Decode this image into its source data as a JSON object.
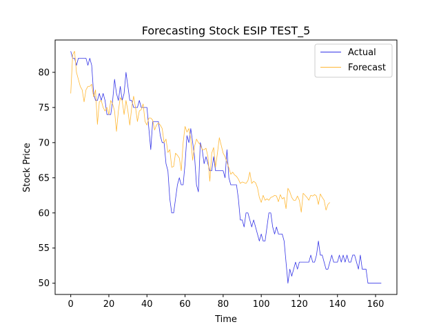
{
  "chart_data": {
    "type": "line",
    "title": "Forecasting Stock ESIP TEST_5",
    "xlabel": "Time",
    "ylabel": "Stock Price",
    "xlim": [
      -8.2,
      171.2
    ],
    "ylim": [
      48.4,
      84.6
    ],
    "xticks": [
      0,
      20,
      40,
      60,
      80,
      100,
      120,
      140,
      160
    ],
    "yticks": [
      50,
      55,
      60,
      65,
      70,
      75,
      80
    ],
    "grid": false,
    "legend_position": "top-right",
    "series": [
      {
        "name": "Actual",
        "color": "#3333e6",
        "values": [
          83,
          82,
          82,
          81,
          82,
          82,
          82,
          82,
          82,
          81,
          82,
          81,
          77,
          76,
          76,
          77,
          76,
          77,
          76,
          74,
          74,
          74,
          76,
          79,
          77,
          76,
          78,
          76,
          77,
          80,
          78,
          76,
          76,
          75,
          75,
          75,
          76,
          75,
          75,
          75,
          75,
          72,
          69,
          73,
          73,
          73,
          73,
          71,
          70,
          70,
          67,
          66,
          62,
          60,
          60,
          62,
          64,
          65,
          64,
          64,
          67,
          71,
          70,
          72,
          70,
          68,
          64,
          63,
          70,
          69,
          67,
          68,
          67,
          66,
          66,
          68,
          66,
          66,
          66,
          66,
          66,
          65,
          69,
          65,
          64,
          64,
          64,
          64,
          62,
          59,
          59,
          58,
          60,
          60,
          59,
          58,
          59,
          58,
          57,
          56,
          57,
          56,
          56,
          58,
          60,
          60,
          58,
          57,
          58,
          57,
          57,
          57,
          56,
          53,
          50,
          52,
          51,
          52,
          53,
          52,
          53,
          53,
          53,
          53,
          53,
          53,
          54,
          53,
          53,
          54,
          56,
          54,
          54,
          53,
          52,
          52,
          53,
          54,
          53,
          53,
          53,
          54,
          53,
          54,
          53,
          54,
          53,
          53,
          54,
          54,
          53,
          52,
          54,
          52,
          52,
          52,
          50,
          50,
          50,
          50,
          50,
          50,
          50,
          50
        ]
      },
      {
        "name": "Forecast",
        "color": "#ffb733",
        "values": [
          77,
          82.5,
          83,
          80,
          79,
          78,
          77.5,
          75.8,
          77.5,
          78,
          78,
          78.3,
          76.5,
          77.5,
          72.6,
          75.8,
          76,
          75,
          74.5,
          75,
          74,
          76,
          75.5,
          74.5,
          71.6,
          74.5,
          76.4,
          76,
          74,
          76,
          74.5,
          72.5,
          75,
          76.6,
          75,
          73,
          74.5,
          74.7,
          75.5,
          73,
          72.5,
          73.5,
          73.5,
          73.2,
          71.8,
          72.5,
          72.8,
          72.5,
          72,
          70,
          70.5,
          68.6,
          69,
          66.5,
          66.6,
          68.5,
          68.2,
          67.8,
          66,
          70,
          72.3,
          71.5,
          72,
          70.5,
          67.5,
          69.5,
          70.5,
          70,
          69.7,
          69,
          69,
          69.2,
          68,
          64.5,
          68.5,
          69.3,
          66.5,
          68.5,
          70.7,
          69.6,
          68.5,
          68,
          67.2,
          66.4,
          65.5,
          65.8,
          65.4,
          65.2,
          64.8,
          64.2,
          64.4,
          64.3,
          64.2,
          64.6,
          65.8,
          64.2,
          64.5,
          64.3,
          63.6,
          62.2,
          61.5,
          62.5,
          61.8,
          62,
          61.8,
          62.2,
          62.3,
          62.5,
          62.4,
          61.6,
          62.6,
          62,
          62.2,
          60.6,
          63.5,
          63,
          62.2,
          61.8,
          61.8,
          62.4,
          61.8,
          60.1,
          62.8,
          62.5,
          62.2,
          61.8,
          62.5,
          62.4,
          62.6,
          62.4,
          61.2,
          62.7,
          62.2,
          61.8,
          60.4,
          61.2,
          61.5
        ]
      }
    ]
  }
}
